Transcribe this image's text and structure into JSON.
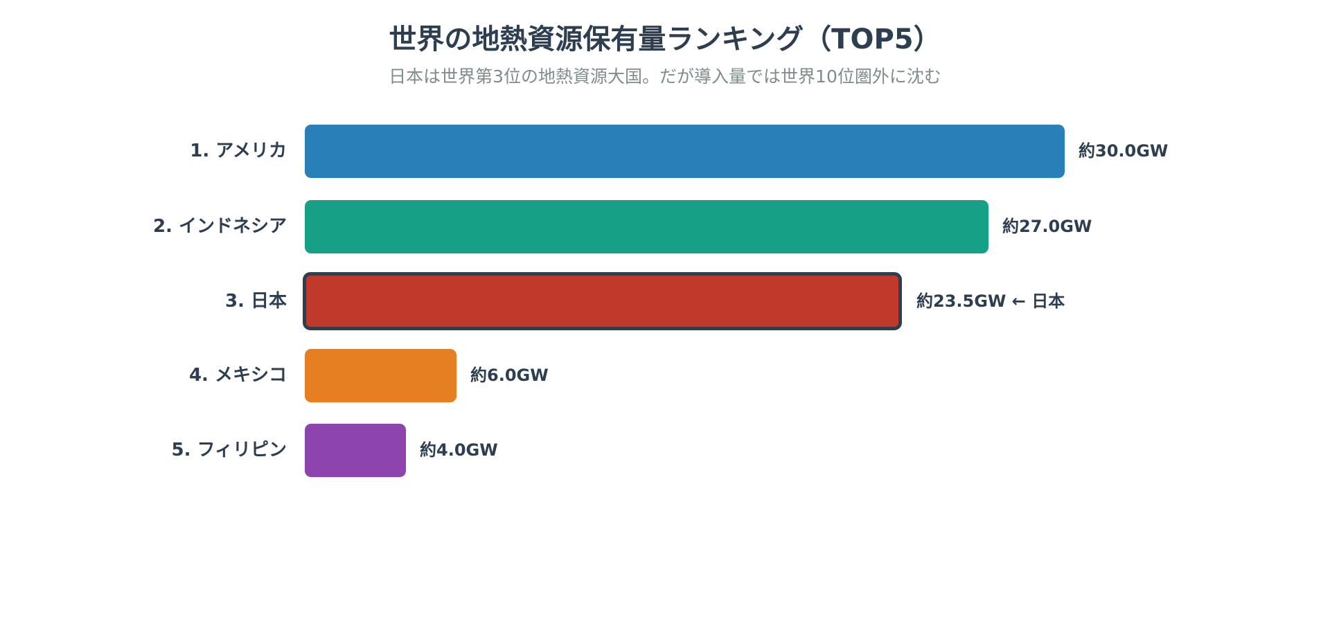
{
  "header": {
    "title": "世界の地熱資源保有量ランキング（TOP5）",
    "subtitle": "日本は世界第3位の地熱資源大国。だが導入量では世界10位圏外に沈む"
  },
  "rows": [
    {
      "label": "1. アメリカ",
      "value_label": "約30.0GW",
      "color": "#2980b9"
    },
    {
      "label": "2. インドネシア",
      "value_label": "約27.0GW",
      "color": "#16a085"
    },
    {
      "label": "3. 日本",
      "value_label": "約23.5GW ← 日本",
      "color": "#c0392b",
      "highlight_border": "#2c3e50"
    },
    {
      "label": "4. メキシコ",
      "value_label": "約6.0GW",
      "color": "#e67e22"
    },
    {
      "label": "5. フィリピン",
      "value_label": "約4.0GW",
      "color": "#8e44ad"
    }
  ],
  "chart_data": {
    "type": "bar",
    "orientation": "horizontal",
    "title": "世界の地熱資源保有量ランキング（TOP5）",
    "subtitle": "日本は世界第3位の地熱資源大国。だが導入量では世界10位圏外に沈む",
    "categories": [
      "1. アメリカ",
      "2. インドネシア",
      "3. 日本",
      "4. メキシコ",
      "5. フィリピン"
    ],
    "values": [
      30.0,
      27.0,
      23.5,
      6.0,
      4.0
    ],
    "unit": "GW",
    "data_labels": [
      "約30.0GW",
      "約27.0GW",
      "約23.5GW ← 日本",
      "約6.0GW",
      "約4.0GW"
    ],
    "colors": [
      "#2980b9",
      "#16a085",
      "#c0392b",
      "#e67e22",
      "#8e44ad"
    ],
    "highlighted_category": "3. 日本",
    "xlabel": "",
    "ylabel": "",
    "xlim": [
      0,
      30
    ],
    "grid": false,
    "legend": "none",
    "axes_visible": false
  }
}
